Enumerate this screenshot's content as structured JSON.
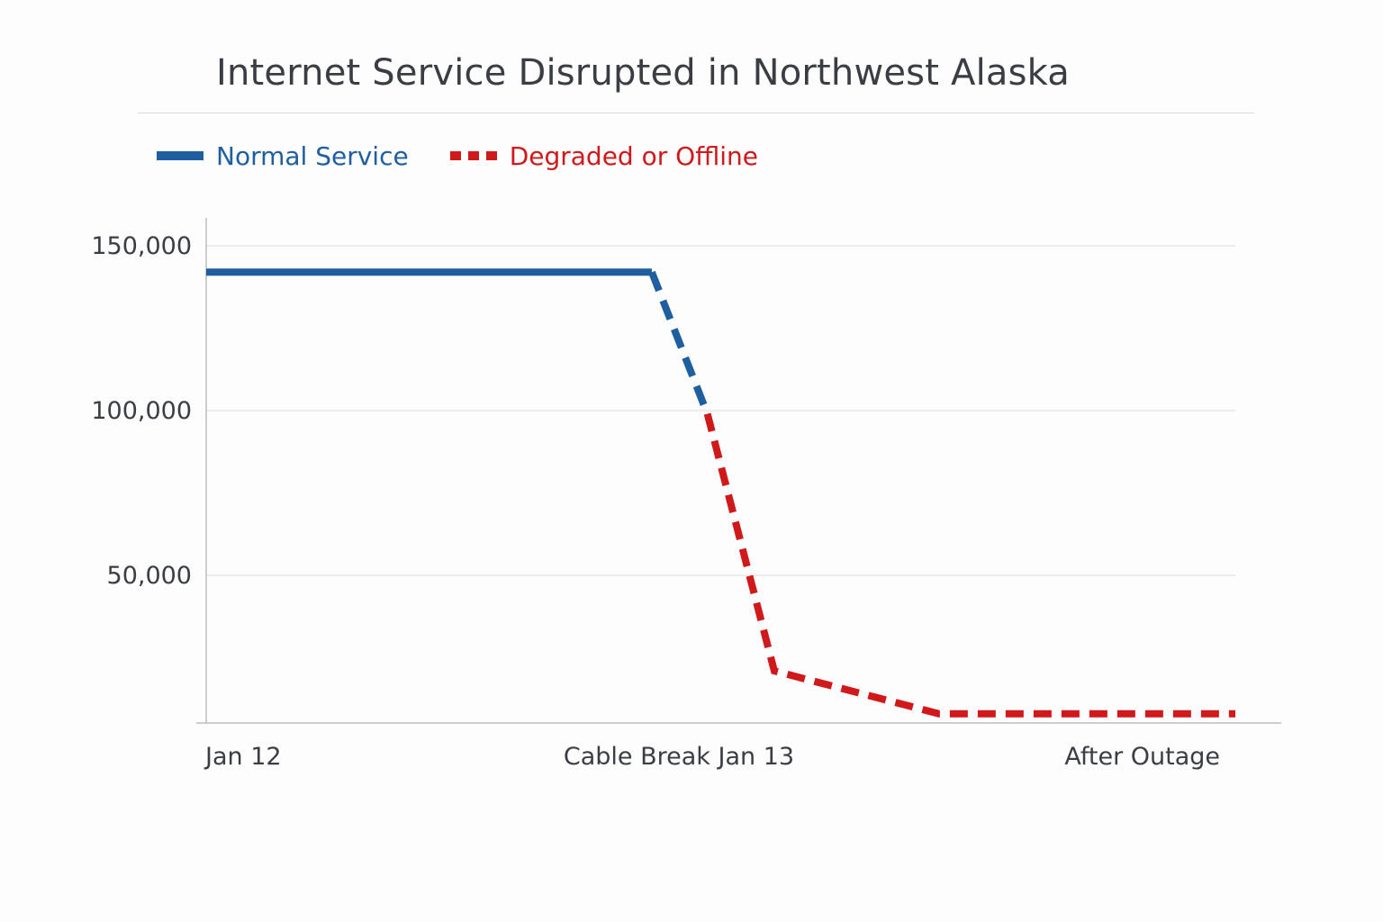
{
  "colors": {
    "normal": "#1f5fa0",
    "degraded": "#d0191b",
    "grid": "#e3e3e3",
    "axis": "#bdbdbd",
    "text": "#3b3d45"
  },
  "chart_data": {
    "type": "line",
    "title": "Internet Service Disrupted in Northwest Alaska",
    "xlabel": "",
    "ylabel": "",
    "x_tick_labels": [
      "Jan 12",
      "Cable Break Jan 13",
      "After Outage"
    ],
    "y_tick_labels": [
      "150,000",
      "100,000",
      "50,000"
    ],
    "y_ticks": [
      150000,
      100000,
      50000
    ],
    "ylim": [
      0,
      160000
    ],
    "grid": true,
    "legend_position": "top-left",
    "series": [
      {
        "name": "Normal Service",
        "color": "#1f5fa0",
        "points": [
          {
            "x": 0.0,
            "y": 142000,
            "style": "solid"
          },
          {
            "x": 0.433,
            "y": 142000,
            "style": "dashed"
          },
          {
            "x": 0.487,
            "y": 99000,
            "style": "end"
          }
        ]
      },
      {
        "name": "Degraded or Offline",
        "color": "#d0191b",
        "points": [
          {
            "x": 0.487,
            "y": 99000
          },
          {
            "x": 0.552,
            "y": 21000
          },
          {
            "x": 0.712,
            "y": 8000
          },
          {
            "x": 1.0,
            "y": 8000
          }
        ]
      }
    ]
  }
}
